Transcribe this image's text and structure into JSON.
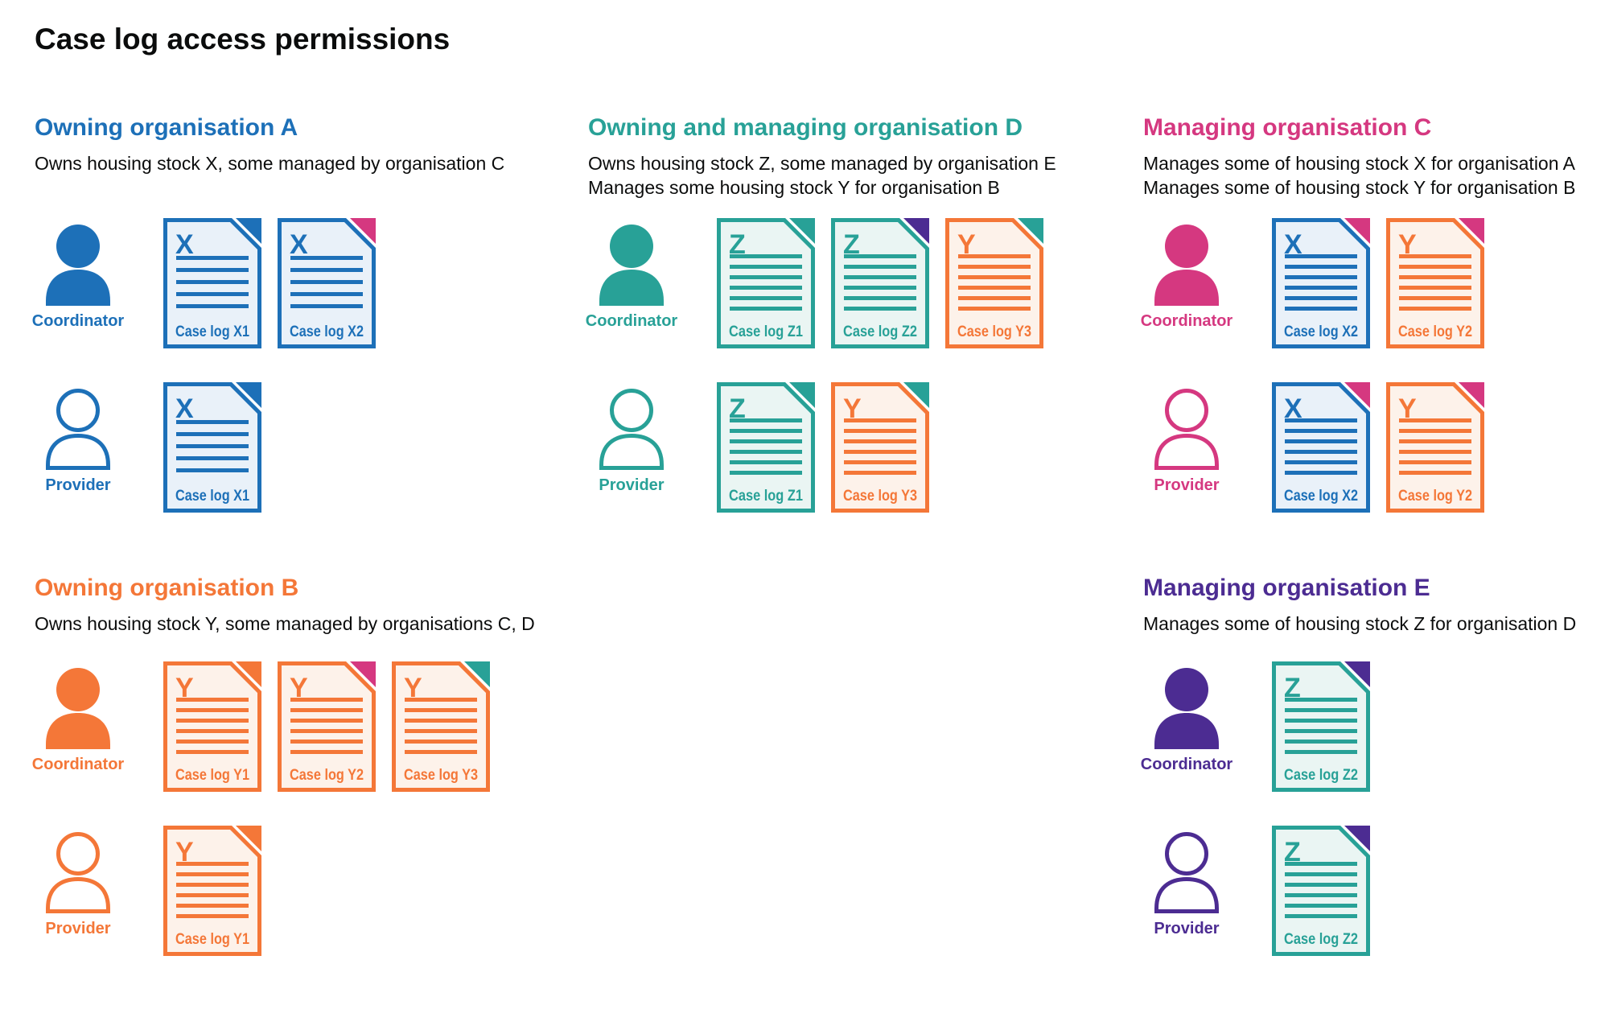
{
  "page_title": "Case log access permissions",
  "colors": {
    "text": "#0b0c0c",
    "palette": {
      "blue": "#1d70b8",
      "teal": "#28a197",
      "pink": "#d53880",
      "orange": "#f47738",
      "purple": "#4c2c92"
    },
    "light_fill": {
      "blue": "#e9f1f9",
      "teal": "#eaf5f3",
      "orange": "#fdf2ea"
    }
  },
  "actor_labels": {
    "coordinator": "Coordinator",
    "provider": "Provider"
  },
  "sections": [
    {
      "id": "org-a",
      "heading": "Owning organisation A",
      "color": "blue",
      "description_lines": [
        "Owns housing stock X, some managed by organisation C"
      ],
      "rows": [
        {
          "actor": "Coordinator",
          "style": "filled",
          "docs": [
            {
              "letter": "X",
              "label": "Case log X1",
              "doc_color": "blue",
              "fold_color": "blue",
              "lines": 5
            },
            {
              "letter": "X",
              "label": "Case log X2",
              "doc_color": "blue",
              "fold_color": "pink",
              "lines": 5
            }
          ]
        },
        {
          "actor": "Provider",
          "style": "outline",
          "docs": [
            {
              "letter": "X",
              "label": "Case log X1",
              "doc_color": "blue",
              "fold_color": "blue",
              "lines": 5
            }
          ]
        }
      ]
    },
    {
      "id": "org-d",
      "heading": "Owning and managing organisation D",
      "color": "teal",
      "description_lines": [
        "Owns housing stock Z, some managed by organisation E",
        "Manages some housing stock Y for organisation B"
      ],
      "rows": [
        {
          "actor": "Coordinator",
          "style": "filled",
          "docs": [
            {
              "letter": "Z",
              "label": "Case log Z1",
              "doc_color": "teal",
              "fold_color": "teal",
              "lines": 6
            },
            {
              "letter": "Z",
              "label": "Case log Z2",
              "doc_color": "teal",
              "fold_color": "purple",
              "lines": 6
            },
            {
              "letter": "Y",
              "label": "Case log Y3",
              "doc_color": "orange",
              "fold_color": "teal",
              "lines": 6
            }
          ]
        },
        {
          "actor": "Provider",
          "style": "outline",
          "docs": [
            {
              "letter": "Z",
              "label": "Case log Z1",
              "doc_color": "teal",
              "fold_color": "teal",
              "lines": 6
            },
            {
              "letter": "Y",
              "label": "Case log Y3",
              "doc_color": "orange",
              "fold_color": "teal",
              "lines": 6
            }
          ]
        }
      ]
    },
    {
      "id": "org-c",
      "heading": "Managing organisation C",
      "color": "pink",
      "description_lines": [
        "Manages some of housing stock X for organisation A",
        "Manages some of housing stock Y for organisation B"
      ],
      "rows": [
        {
          "actor": "Coordinator",
          "style": "filled",
          "docs": [
            {
              "letter": "X",
              "label": "Case log X2",
              "doc_color": "blue",
              "fold_color": "pink",
              "lines": 6
            },
            {
              "letter": "Y",
              "label": "Case log Y2",
              "doc_color": "orange",
              "fold_color": "pink",
              "lines": 6
            }
          ]
        },
        {
          "actor": "Provider",
          "style": "outline",
          "docs": [
            {
              "letter": "X",
              "label": "Case log X2",
              "doc_color": "blue",
              "fold_color": "pink",
              "lines": 6
            },
            {
              "letter": "Y",
              "label": "Case log Y2",
              "doc_color": "orange",
              "fold_color": "pink",
              "lines": 6
            }
          ]
        }
      ]
    },
    {
      "id": "org-b",
      "heading": "Owning organisation B",
      "color": "orange",
      "description_lines": [
        "Owns housing stock Y, some managed by organisations C, D"
      ],
      "rows": [
        {
          "actor": "Coordinator",
          "style": "filled",
          "docs": [
            {
              "letter": "Y",
              "label": "Case log Y1",
              "doc_color": "orange",
              "fold_color": "orange",
              "lines": 6
            },
            {
              "letter": "Y",
              "label": "Case log Y2",
              "doc_color": "orange",
              "fold_color": "pink",
              "lines": 6
            },
            {
              "letter": "Y",
              "label": "Case log Y3",
              "doc_color": "orange",
              "fold_color": "teal",
              "lines": 6
            }
          ]
        },
        {
          "actor": "Provider",
          "style": "outline",
          "docs": [
            {
              "letter": "Y",
              "label": "Case log Y1",
              "doc_color": "orange",
              "fold_color": "orange",
              "lines": 6
            }
          ]
        }
      ]
    },
    {
      "id": "org-e",
      "heading": "Managing organisation E",
      "color": "purple",
      "description_lines": [
        "Manages some of housing stock Z for organisation D"
      ],
      "rows": [
        {
          "actor": "Coordinator",
          "style": "filled",
          "docs": [
            {
              "letter": "Z",
              "label": "Case log Z2",
              "doc_color": "teal",
              "fold_color": "purple",
              "lines": 6
            }
          ]
        },
        {
          "actor": "Provider",
          "style": "outline",
          "docs": [
            {
              "letter": "Z",
              "label": "Case log Z2",
              "doc_color": "teal",
              "fold_color": "purple",
              "lines": 6
            }
          ]
        }
      ]
    }
  ]
}
